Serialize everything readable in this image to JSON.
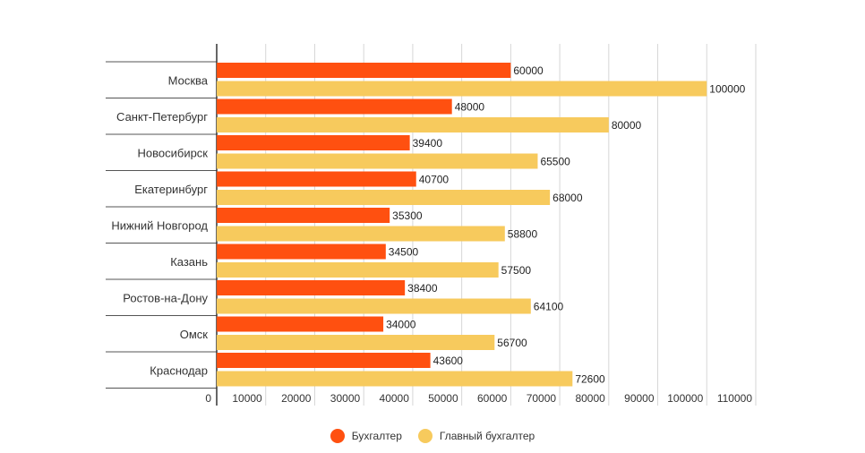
{
  "chart_data": {
    "type": "bar",
    "orientation": "horizontal",
    "title": "",
    "xlabel": "",
    "ylabel": "",
    "xlim": [
      0,
      110000
    ],
    "ticks": [
      "0",
      "10000",
      "20000",
      "30000",
      "40000",
      "50000",
      "60000",
      "70000",
      "80000",
      "90000",
      "100000",
      "110000"
    ],
    "tick_values": [
      0,
      10000,
      20000,
      30000,
      40000,
      50000,
      60000,
      70000,
      80000,
      90000,
      100000,
      110000
    ],
    "categories": [
      "Москва",
      "Санкт-Петербург",
      "Новосибирск",
      "Екатеринбург",
      "Нижний Новгород",
      "Казань",
      "Ростов-на-Дону",
      "Омск",
      "Краснодар"
    ],
    "series": [
      {
        "name": "Бухгалтер",
        "color": "#ff5010",
        "values": [
          60000,
          48000,
          39400,
          40700,
          35300,
          34500,
          38400,
          34000,
          43600
        ]
      },
      {
        "name": "Главный бухгалтер",
        "color": "#f7ca5d",
        "values": [
          100000,
          80000,
          65500,
          68000,
          58800,
          57500,
          64100,
          56700,
          72600
        ]
      }
    ],
    "grid": true,
    "legend_position": "bottom"
  }
}
